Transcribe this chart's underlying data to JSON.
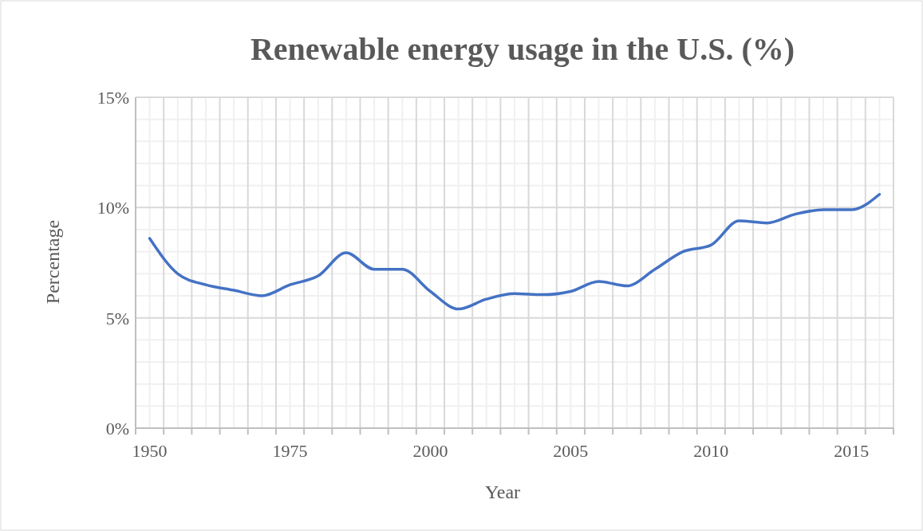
{
  "chart_data": {
    "type": "line",
    "title": "Renewable energy usage in the U.S. (%)",
    "xlabel": "Year",
    "ylabel": "Percentage",
    "categories": [
      "1950",
      null,
      null,
      null,
      null,
      "1975",
      null,
      null,
      null,
      null,
      "2000",
      null,
      null,
      null,
      null,
      "2005",
      null,
      null,
      null,
      null,
      "2010",
      null,
      null,
      null,
      null,
      "2015",
      null
    ],
    "series": [
      {
        "color": "#4472c4",
        "values": [
          8.6,
          7.0,
          6.5,
          6.25,
          6.0,
          6.5,
          6.9,
          7.95,
          7.2,
          7.2,
          6.2,
          5.4,
          5.85,
          6.1,
          6.05,
          6.2,
          6.65,
          6.45,
          7.2,
          8.0,
          8.3,
          9.4,
          9.3,
          9.7,
          9.9,
          9.9,
          10.6
        ]
      }
    ],
    "ylim": [
      0,
      15
    ],
    "yticks": [
      {
        "value": 0,
        "label": "0%"
      },
      {
        "value": 5,
        "label": "5%"
      },
      {
        "value": 10,
        "label": "10%"
      },
      {
        "value": 15,
        "label": "15%"
      }
    ],
    "grid": true,
    "marker": "none",
    "line_style": "solid"
  }
}
